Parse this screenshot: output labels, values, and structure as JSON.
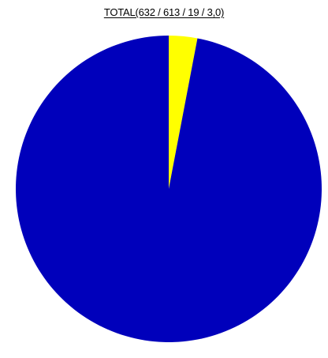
{
  "chart_data": {
    "type": "pie",
    "title": "TOTAL(632 / 613 / 19 / 3,0)",
    "slices": [
      {
        "value": 613,
        "color": "#0000bb"
      },
      {
        "value": 19,
        "color": "#ffff00"
      }
    ],
    "start_angle_deg": 0,
    "direction": "clockwise",
    "largest_slice": "counterclockwise-from-top"
  }
}
